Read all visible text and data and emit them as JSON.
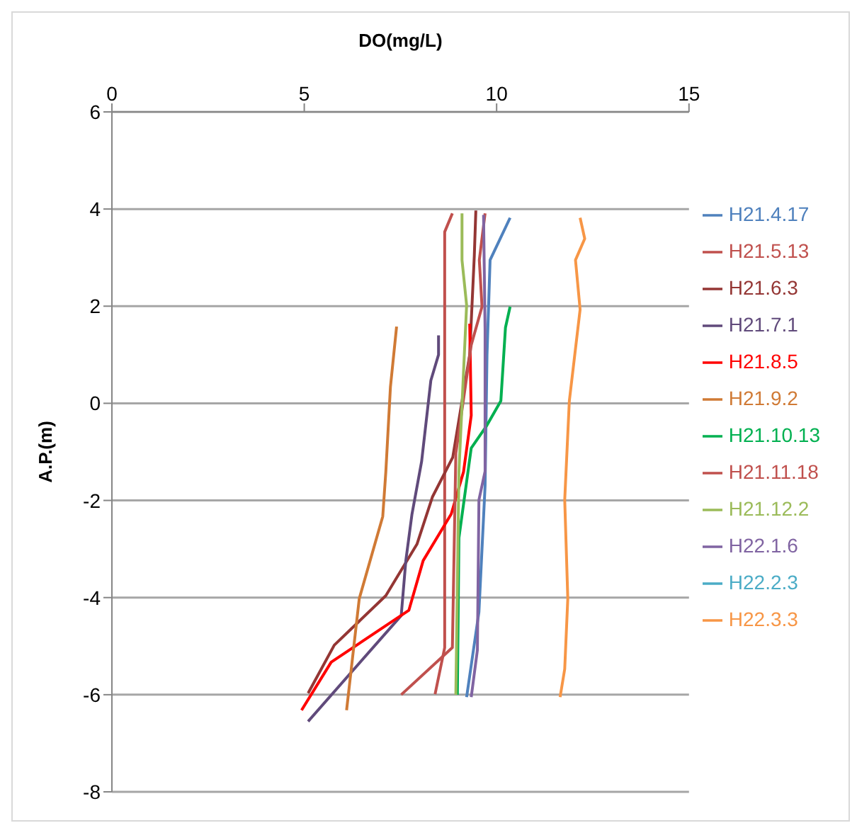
{
  "chart_data": {
    "type": "line",
    "xlabel": "DO(mg/L)",
    "ylabel": "A.P.(m)",
    "xlim": [
      0,
      15
    ],
    "xticks": [
      0,
      5,
      10,
      15
    ],
    "ylim": [
      -8,
      6
    ],
    "yticks": [
      -8,
      -6,
      -4,
      -2,
      0,
      2,
      4,
      6
    ],
    "grid": "y",
    "legend": "right",
    "marker": "none",
    "line_style": "solid",
    "series": [
      {
        "name": "H21.4.17",
        "color": "#4f81bd",
        "x": [
          10.35,
          9.83,
          9.75,
          9.7,
          9.54,
          9.22
        ],
        "values": [
          3.82,
          2.95,
          1.0,
          -1.7,
          -4.3,
          -6.05
        ]
      },
      {
        "name": "H21.5.13",
        "color": "#c0504d",
        "x": [
          8.85,
          8.65,
          8.65,
          8.4
        ],
        "values": [
          3.91,
          3.53,
          -5.03,
          -5.99
        ]
      },
      {
        "name": "H21.6.3",
        "color": "#943634",
        "x": [
          9.46,
          9.42,
          9.3,
          8.86,
          8.33,
          7.93,
          7.12,
          5.78,
          5.1
        ],
        "values": [
          3.97,
          3.04,
          1.0,
          -1.11,
          -1.93,
          -2.9,
          -3.96,
          -4.98,
          -5.97
        ]
      },
      {
        "name": "H21.7.1",
        "color": "#604a7b",
        "x": [
          8.49,
          8.49,
          8.29,
          8.05,
          7.8,
          7.64,
          7.52,
          5.1
        ],
        "values": [
          1.4,
          1.0,
          0.47,
          -1.2,
          -2.28,
          -3.24,
          -4.37,
          -6.55
        ]
      },
      {
        "name": "H21.8.5",
        "color": "#ff0000",
        "x": [
          9.3,
          9.34,
          9.14,
          8.82,
          8.09,
          7.72,
          5.7,
          4.93
        ],
        "values": [
          1.64,
          -0.25,
          -1.41,
          -2.28,
          -3.24,
          -4.26,
          -5.33,
          -6.32
        ]
      },
      {
        "name": "H21.9.2",
        "color": "#d07a35",
        "x": [
          7.4,
          7.24,
          7.12,
          7.04,
          6.43,
          6.1
        ],
        "values": [
          1.58,
          0.34,
          -1.41,
          -2.33,
          -4.02,
          -6.32
        ]
      },
      {
        "name": "H21.10.13",
        "color": "#00b050",
        "x": [
          10.35,
          10.23,
          10.11,
          9.75,
          9.34,
          9.02,
          8.98
        ],
        "values": [
          1.99,
          1.56,
          0.05,
          -0.45,
          -0.92,
          -2.77,
          -6.0
        ]
      },
      {
        "name": "H21.11.18",
        "color": "#c0504d",
        "x": [
          9.7,
          9.55,
          9.62,
          9.34,
          8.94,
          8.85,
          7.52
        ],
        "values": [
          3.91,
          2.95,
          1.99,
          1.2,
          -1.03,
          -5.03,
          -6.0
        ]
      },
      {
        "name": "H21.12.2",
        "color": "#9bbb59",
        "x": [
          9.1,
          9.1,
          9.22,
          9.02,
          8.94
        ],
        "values": [
          3.91,
          2.95,
          2.02,
          -1.41,
          -6.0
        ]
      },
      {
        "name": "H22.1.6",
        "color": "#8064a2",
        "x": [
          9.66,
          9.7,
          9.7,
          9.54,
          9.5,
          9.34
        ],
        "values": [
          3.88,
          1.5,
          -1.4,
          -1.99,
          -5.08,
          -6.05
        ]
      },
      {
        "name": "H22.2.3",
        "color": "#4bacc6",
        "x": [
          null
        ],
        "values": [
          null
        ]
      },
      {
        "name": "H22.3.3",
        "color": "#f79646",
        "x": [
          12.17,
          12.29,
          12.05,
          12.17,
          11.89,
          11.77,
          11.85,
          11.77,
          11.65
        ],
        "values": [
          3.82,
          3.39,
          2.95,
          1.93,
          0.05,
          -1.99,
          -4.02,
          -5.47,
          -6.05
        ]
      }
    ]
  }
}
